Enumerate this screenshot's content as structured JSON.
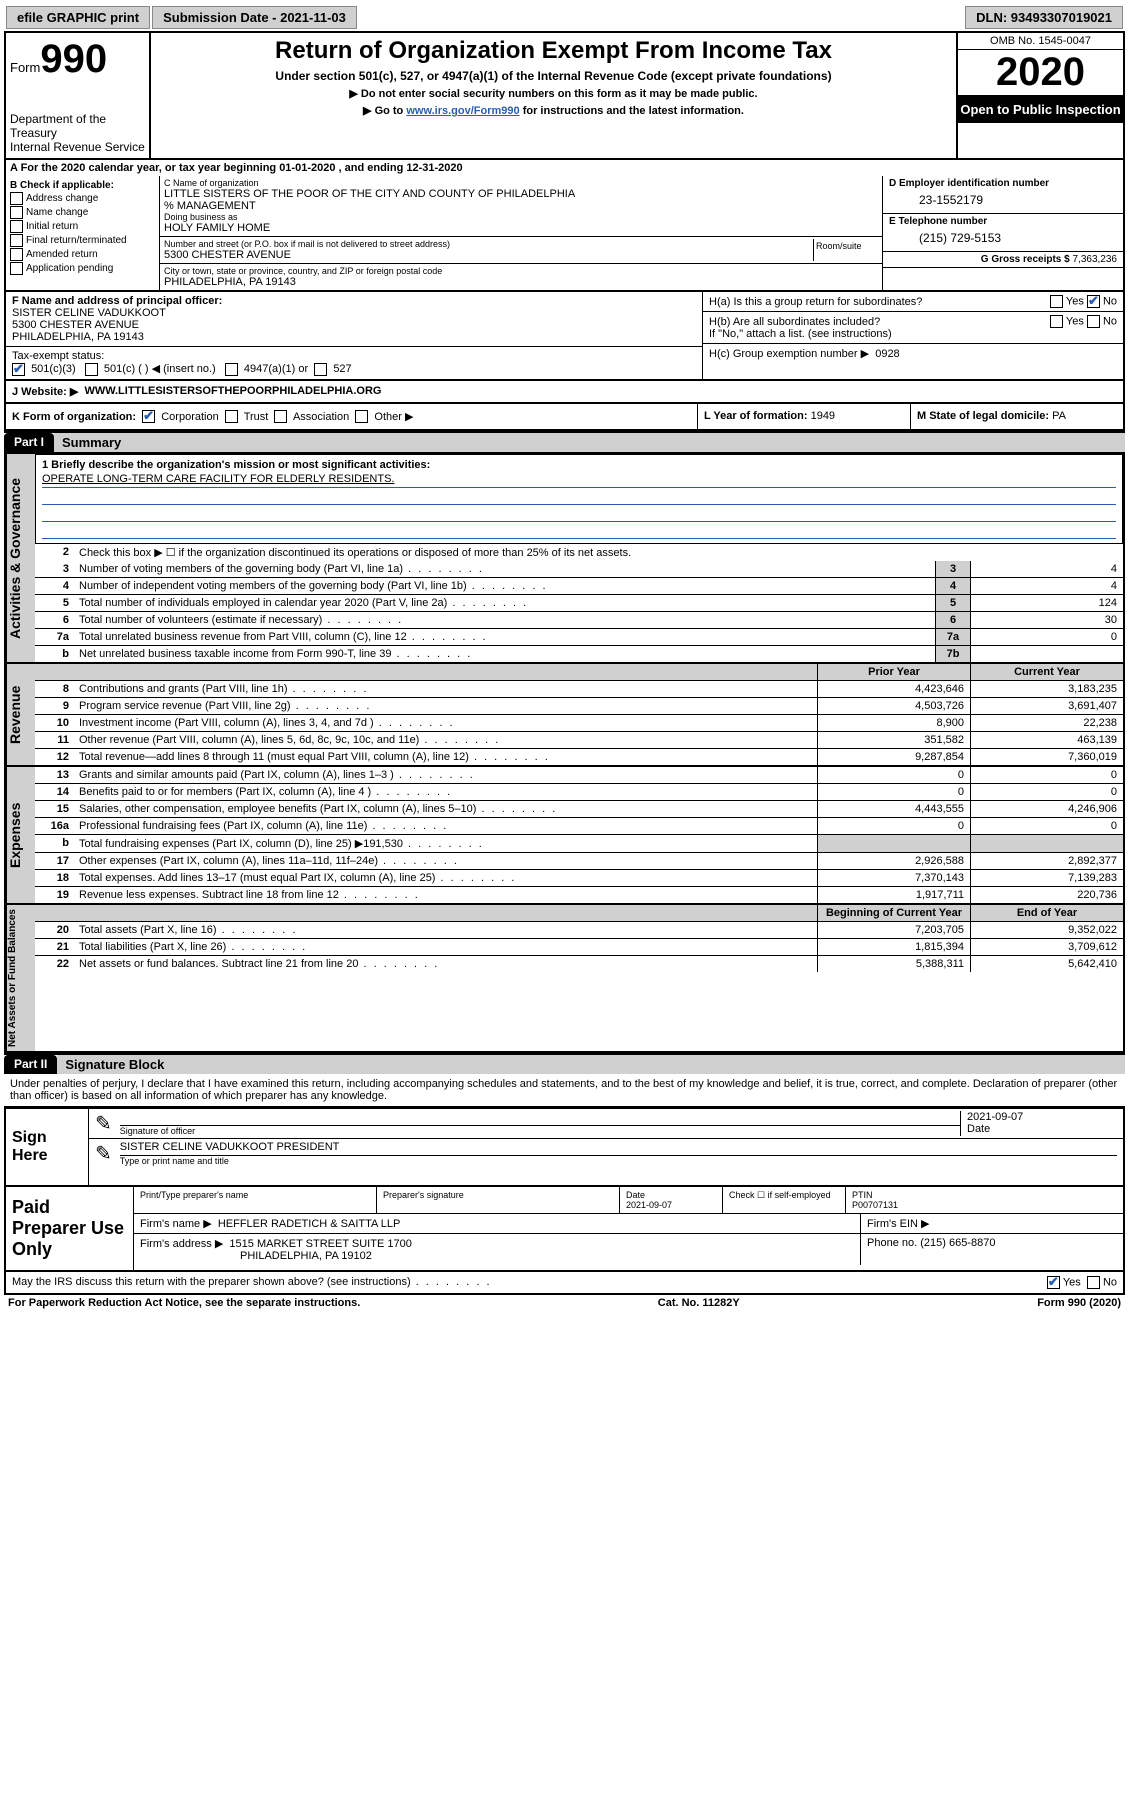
{
  "topbar": {
    "efile": "efile GRAPHIC print",
    "submission": "Submission Date - 2021-11-03",
    "dln": "DLN: 93493307019021"
  },
  "header": {
    "form_label": "Form",
    "form_num": "990",
    "title": "Return of Organization Exempt From Income Tax",
    "subtitle": "Under section 501(c), 527, or 4947(a)(1) of the Internal Revenue Code (except private foundations)",
    "instr1": "Do not enter social security numbers on this form as it may be made public.",
    "instr2_pre": "Go to ",
    "instr2_link": "www.irs.gov/Form990",
    "instr2_post": " for instructions and the latest information.",
    "dept": "Department of the Treasury\nInternal Revenue Service",
    "omb": "OMB No. 1545-0047",
    "year": "2020",
    "open_public": "Open to Public Inspection"
  },
  "line_a": "A  For the 2020 calendar year, or tax year beginning 01-01-2020    , and ending 12-31-2020",
  "col_b": {
    "hdr": "B Check if applicable:",
    "opts": [
      "Address change",
      "Name change",
      "Initial return",
      "Final return/terminated",
      "Amended return",
      "Application pending"
    ]
  },
  "col_c": {
    "name_lbl": "C Name of organization",
    "name_val": "LITTLE SISTERS OF THE POOR OF THE CITY AND COUNTY OF PHILADELPHIA",
    "care_of": "% MANAGEMENT",
    "dba_lbl": "Doing business as",
    "dba_val": "HOLY FAMILY HOME",
    "addr_lbl": "Number and street (or P.O. box if mail is not delivered to street address)",
    "addr_val": "5300 CHESTER AVENUE",
    "room_lbl": "Room/suite",
    "city_lbl": "City or town, state or province, country, and ZIP or foreign postal code",
    "city_val": "PHILADELPHIA, PA  19143"
  },
  "col_d": {
    "ein_lbl": "D Employer identification number",
    "ein_val": "23-1552179",
    "tel_lbl": "E Telephone number",
    "tel_val": "(215) 729-5153",
    "gross_lbl": "G Gross receipts $",
    "gross_val": "7,363,236"
  },
  "info": {
    "f_lbl": "F  Name and address of principal officer:",
    "f_name": "SISTER CELINE VADUKKOOT",
    "f_addr1": "5300 CHESTER AVENUE",
    "f_addr2": "PHILADELPHIA, PA  19143",
    "tax_exempt_lbl": "Tax-exempt status:",
    "te_1": "501(c)(3)",
    "te_2": "501(c) (   ) ◀ (insert no.)",
    "te_3": "4947(a)(1) or",
    "te_4": "527",
    "ha_lbl": "H(a)  Is this a group return for subordinates?",
    "hb_lbl": "H(b)  Are all subordinates included?",
    "hb_note": "If \"No,\" attach a list. (see instructions)",
    "hc_lbl": "H(c)  Group exemption number ▶",
    "hc_val": "0928",
    "yes": "Yes",
    "no": "No"
  },
  "j": {
    "lbl": "J     Website: ▶",
    "val": "WWW.LITTLESISTERSOFTHEPOORPHILADELPHIA.ORG"
  },
  "k": {
    "lbl": "K Form of organization:",
    "opts": [
      "Corporation",
      "Trust",
      "Association",
      "Other ▶"
    ],
    "l_lbl": "L Year of formation:",
    "l_val": "1949",
    "m_lbl": "M State of legal domicile:",
    "m_val": "PA"
  },
  "part1": {
    "hdr": "Part I",
    "title": "Summary"
  },
  "mission": {
    "line1_lbl": "1   Briefly describe the organization's mission or most significant activities:",
    "line1_val": "OPERATE LONG-TERM CARE FACILITY FOR ELDERLY RESIDENTS."
  },
  "gov_rows": [
    {
      "n": "2",
      "d": "Check this box ▶ ☐  if the organization discontinued its operations or disposed of more than 25% of its net assets.",
      "box": "",
      "v": ""
    },
    {
      "n": "3",
      "d": "Number of voting members of the governing body (Part VI, line 1a)",
      "box": "3",
      "v": "4"
    },
    {
      "n": "4",
      "d": "Number of independent voting members of the governing body (Part VI, line 1b)",
      "box": "4",
      "v": "4"
    },
    {
      "n": "5",
      "d": "Total number of individuals employed in calendar year 2020 (Part V, line 2a)",
      "box": "5",
      "v": "124"
    },
    {
      "n": "6",
      "d": "Total number of volunteers (estimate if necessary)",
      "box": "6",
      "v": "30"
    },
    {
      "n": "7a",
      "d": "Total unrelated business revenue from Part VIII, column (C), line 12",
      "box": "7a",
      "v": "0"
    },
    {
      "n": "b",
      "d": "Net unrelated business taxable income from Form 990-T, line 39",
      "box": "7b",
      "v": ""
    }
  ],
  "rev_hdr": {
    "py": "Prior Year",
    "cy": "Current Year"
  },
  "rev_rows": [
    {
      "n": "8",
      "d": "Contributions and grants (Part VIII, line 1h)",
      "py": "4,423,646",
      "cy": "3,183,235"
    },
    {
      "n": "9",
      "d": "Program service revenue (Part VIII, line 2g)",
      "py": "4,503,726",
      "cy": "3,691,407"
    },
    {
      "n": "10",
      "d": "Investment income (Part VIII, column (A), lines 3, 4, and 7d )",
      "py": "8,900",
      "cy": "22,238"
    },
    {
      "n": "11",
      "d": "Other revenue (Part VIII, column (A), lines 5, 6d, 8c, 9c, 10c, and 11e)",
      "py": "351,582",
      "cy": "463,139"
    },
    {
      "n": "12",
      "d": "Total revenue—add lines 8 through 11 (must equal Part VIII, column (A), line 12)",
      "py": "9,287,854",
      "cy": "7,360,019"
    }
  ],
  "exp_rows": [
    {
      "n": "13",
      "d": "Grants and similar amounts paid (Part IX, column (A), lines 1–3 )",
      "py": "0",
      "cy": "0"
    },
    {
      "n": "14",
      "d": "Benefits paid to or for members (Part IX, column (A), line 4 )",
      "py": "0",
      "cy": "0"
    },
    {
      "n": "15",
      "d": "Salaries, other compensation, employee benefits (Part IX, column (A), lines 5–10)",
      "py": "4,443,555",
      "cy": "4,246,906"
    },
    {
      "n": "16a",
      "d": "Professional fundraising fees (Part IX, column (A), line 11e)",
      "py": "0",
      "cy": "0"
    },
    {
      "n": "b",
      "d": "Total fundraising expenses (Part IX, column (D), line 25) ▶191,530",
      "py": "",
      "cy": "",
      "grey": true
    },
    {
      "n": "17",
      "d": "Other expenses (Part IX, column (A), lines 11a–11d, 11f–24e)",
      "py": "2,926,588",
      "cy": "2,892,377"
    },
    {
      "n": "18",
      "d": "Total expenses. Add lines 13–17 (must equal Part IX, column (A), line 25)",
      "py": "7,370,143",
      "cy": "7,139,283"
    },
    {
      "n": "19",
      "d": "Revenue less expenses. Subtract line 18 from line 12",
      "py": "1,917,711",
      "cy": "220,736"
    }
  ],
  "na_hdr": {
    "bcy": "Beginning of Current Year",
    "eoy": "End of Year"
  },
  "na_rows": [
    {
      "n": "20",
      "d": "Total assets (Part X, line 16)",
      "py": "7,203,705",
      "cy": "9,352,022"
    },
    {
      "n": "21",
      "d": "Total liabilities (Part X, line 26)",
      "py": "1,815,394",
      "cy": "3,709,612"
    },
    {
      "n": "22",
      "d": "Net assets or fund balances. Subtract line 21 from line 20",
      "py": "5,388,311",
      "cy": "5,642,410"
    }
  ],
  "side_labels": {
    "gov": "Activities & Governance",
    "rev": "Revenue",
    "exp": "Expenses",
    "na": "Net Assets or Fund Balances"
  },
  "part2": {
    "hdr": "Part II",
    "title": "Signature Block"
  },
  "declaration": "Under penalties of perjury, I declare that I have examined this return, including accompanying schedules and statements, and to the best of my knowledge and belief, it is true, correct, and complete. Declaration of preparer (other than officer) is based on all information of which preparer has any knowledge.",
  "sign": {
    "here": "Sign Here",
    "sig_lbl": "Signature of officer",
    "date_lbl": "Date",
    "date_val": "2021-09-07",
    "name_val": "SISTER CELINE VADUKKOOT PRESIDENT",
    "name_lbl": "Type or print name and title"
  },
  "prep": {
    "title": "Paid Preparer Use Only",
    "h1": "Print/Type preparer's name",
    "h2": "Preparer's signature",
    "h3": "Date",
    "h3v": "2021-09-07",
    "h4": "Check ☐ if self-employed",
    "h5": "PTIN",
    "h5v": "P00707131",
    "firm_name_lbl": "Firm's name    ▶",
    "firm_name": "HEFFLER RADETICH & SAITTA LLP",
    "firm_ein_lbl": "Firm's EIN ▶",
    "firm_addr_lbl": "Firm's address ▶",
    "firm_addr1": "1515 MARKET STREET SUITE 1700",
    "firm_addr2": "PHILADELPHIA, PA  19102",
    "phone_lbl": "Phone no.",
    "phone_val": "(215) 665-8870"
  },
  "footer_q": "May the IRS discuss this return with the preparer shown above? (see instructions)",
  "footer": {
    "pra": "For Paperwork Reduction Act Notice, see the separate instructions.",
    "cat": "Cat. No. 11282Y",
    "form": "Form 990 (2020)"
  }
}
